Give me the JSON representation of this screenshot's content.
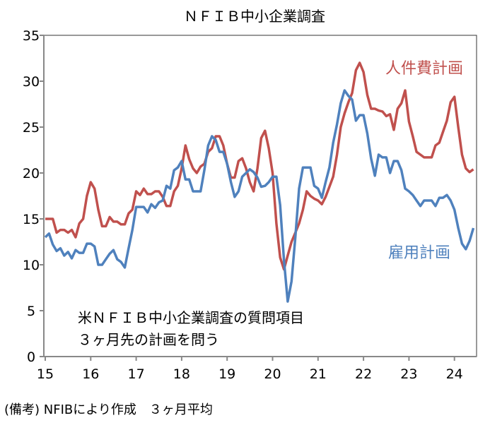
{
  "chart_data": {
    "type": "line",
    "title": "ＮＦＩＢ中小企業調査",
    "xlabel": "",
    "ylabel": "",
    "ylim": [
      0,
      35
    ],
    "yticks": [
      0,
      5,
      10,
      15,
      20,
      25,
      30,
      35
    ],
    "xtick_labels": [
      "15",
      "16",
      "17",
      "18",
      "19",
      "20",
      "21",
      "22",
      "23",
      "24"
    ],
    "x_start": "2015-01",
    "x_frequency": "monthly",
    "grid": false,
    "annotation": [
      "米ＮＦＩＢ中小企業調査の質問項目",
      "３ヶ月先の計画を問う"
    ],
    "note": "(備考) NFIBにより作成　３ヶ月平均",
    "series": [
      {
        "name": "人件費計画",
        "color": "#c0504d",
        "values": [
          15,
          15,
          15,
          13.5,
          13.8,
          13.8,
          13.5,
          13.8,
          13,
          14.5,
          15,
          17.5,
          19,
          18.3,
          16,
          14.2,
          14.2,
          15.2,
          14.7,
          14.7,
          14.4,
          14.4,
          15.6,
          16,
          18,
          17.6,
          18.3,
          17.7,
          17.7,
          18,
          18,
          17.4,
          16.4,
          16.4,
          18,
          18.6,
          20.5,
          23,
          21.5,
          20.5,
          20,
          20.7,
          21,
          22.3,
          22.7,
          24,
          24,
          23,
          21,
          19.5,
          19.5,
          21.3,
          21.6,
          20.5,
          19,
          18,
          20.5,
          23.8,
          24.6,
          22.7,
          20,
          14.5,
          10.8,
          9.5,
          11,
          12.5,
          13.5,
          14.5,
          16,
          18,
          17.5,
          17.2,
          17,
          16.6,
          17.4,
          18.5,
          19.6,
          22,
          25,
          26.5,
          27.7,
          28.7,
          31.2,
          32,
          31,
          28.5,
          27,
          27,
          26.8,
          26.7,
          26.2,
          26.4,
          24.7,
          27,
          27.6,
          29,
          25.6,
          24,
          22.3,
          22,
          21.7,
          21.7,
          21.7,
          23,
          23.3,
          24.5,
          25.7,
          27.7,
          28.3,
          25,
          22,
          20.5,
          20.1,
          20.4
        ]
      },
      {
        "name": "雇用計画",
        "color": "#4f81bd",
        "values": [
          13,
          13.4,
          12.2,
          11.5,
          11.8,
          11,
          11.4,
          10.7,
          11.6,
          11.3,
          11.3,
          12.3,
          12.3,
          12,
          10,
          10,
          10.6,
          11.2,
          11.6,
          10.6,
          10.3,
          9.7,
          11.8,
          13.8,
          16.3,
          16.3,
          16.3,
          15.7,
          16.6,
          16.2,
          16.8,
          17,
          18.6,
          18.3,
          20.3,
          20.6,
          21.3,
          19.3,
          19.3,
          18,
          18,
          18,
          20.3,
          23,
          24,
          23.6,
          22.3,
          22.3,
          21,
          19,
          17.4,
          18,
          19.6,
          20,
          20.4,
          20.1,
          19.5,
          18.5,
          18.6,
          19,
          19.6,
          19.6,
          16.5,
          10.5,
          6,
          8.2,
          13,
          18.3,
          20.6,
          20.6,
          20.6,
          18.6,
          18.3,
          17.3,
          19,
          20.6,
          23.3,
          25.3,
          27.6,
          29,
          28.4,
          28,
          25.7,
          26.3,
          26.3,
          24.3,
          21.6,
          19.7,
          22,
          21.7,
          21.7,
          20,
          21.3,
          21.3,
          20.3,
          18.3,
          18,
          17.6,
          17,
          16.4,
          17,
          17,
          17,
          16.4,
          17.3,
          17.3,
          17.6,
          17,
          16,
          14,
          12.3,
          11.7,
          12.6,
          14
        ]
      }
    ]
  }
}
